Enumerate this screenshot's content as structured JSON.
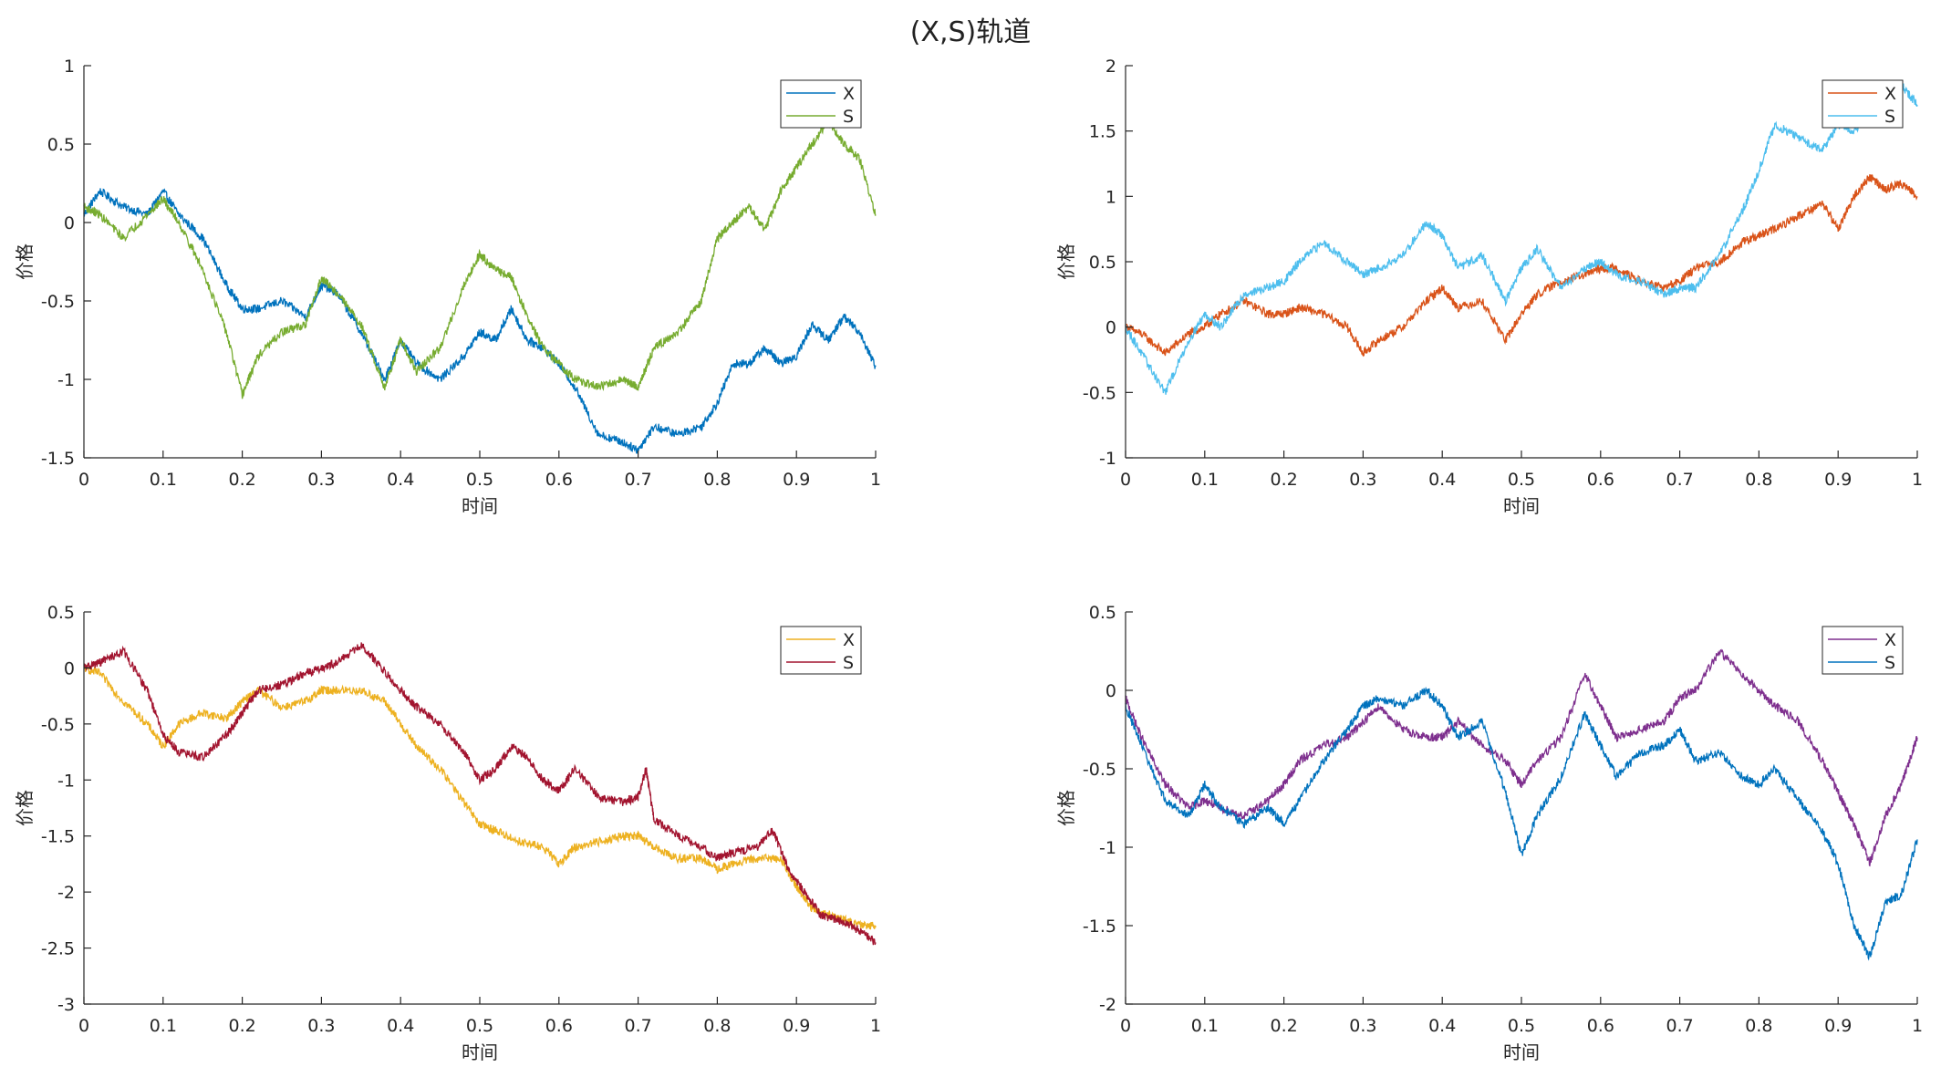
{
  "figure": {
    "title": "(X,S)轨道"
  },
  "chart_data": [
    {
      "type": "line",
      "xlabel": "时间",
      "ylabel": "价格",
      "xlim": [
        0,
        1
      ],
      "ylim": [
        -1.5,
        1
      ],
      "xticks": [
        0,
        0.1,
        0.2,
        0.3,
        0.4,
        0.5,
        0.6,
        0.7,
        0.8,
        0.9,
        1
      ],
      "yticks": [
        -1.5,
        -1,
        -0.5,
        0,
        0.5,
        1
      ],
      "legend_position": "top-right",
      "series": [
        {
          "name": "X",
          "color": "#0072BD",
          "x": [
            0,
            0.02,
            0.05,
            0.08,
            0.1,
            0.12,
            0.15,
            0.18,
            0.2,
            0.22,
            0.25,
            0.28,
            0.3,
            0.32,
            0.35,
            0.38,
            0.4,
            0.42,
            0.45,
            0.48,
            0.5,
            0.52,
            0.54,
            0.56,
            0.58,
            0.6,
            0.62,
            0.65,
            0.68,
            0.7,
            0.72,
            0.75,
            0.78,
            0.8,
            0.82,
            0.84,
            0.86,
            0.88,
            0.9,
            0.92,
            0.94,
            0.96,
            0.98,
            1.0
          ],
          "y": [
            0.05,
            0.2,
            0.1,
            0.05,
            0.2,
            0.05,
            -0.1,
            -0.4,
            -0.55,
            -0.55,
            -0.5,
            -0.6,
            -0.4,
            -0.45,
            -0.7,
            -1.0,
            -0.75,
            -0.9,
            -1.0,
            -0.85,
            -0.7,
            -0.75,
            -0.55,
            -0.75,
            -0.8,
            -0.9,
            -1.05,
            -1.35,
            -1.4,
            -1.45,
            -1.3,
            -1.35,
            -1.3,
            -1.15,
            -0.9,
            -0.9,
            -0.8,
            -0.9,
            -0.85,
            -0.65,
            -0.75,
            -0.6,
            -0.7,
            -0.92
          ]
        },
        {
          "name": "S",
          "color": "#77AC30",
          "x": [
            0,
            0.02,
            0.05,
            0.08,
            0.1,
            0.12,
            0.15,
            0.18,
            0.2,
            0.22,
            0.25,
            0.28,
            0.3,
            0.32,
            0.35,
            0.38,
            0.4,
            0.42,
            0.45,
            0.48,
            0.5,
            0.52,
            0.54,
            0.56,
            0.58,
            0.6,
            0.62,
            0.65,
            0.68,
            0.7,
            0.72,
            0.75,
            0.78,
            0.8,
            0.82,
            0.84,
            0.86,
            0.88,
            0.9,
            0.92,
            0.94,
            0.96,
            0.98,
            1.0
          ],
          "y": [
            0.1,
            0.05,
            -0.1,
            0.05,
            0.15,
            0.0,
            -0.3,
            -0.7,
            -1.1,
            -0.85,
            -0.7,
            -0.65,
            -0.35,
            -0.45,
            -0.65,
            -1.05,
            -0.75,
            -0.95,
            -0.8,
            -0.4,
            -0.2,
            -0.3,
            -0.35,
            -0.6,
            -0.8,
            -0.9,
            -1.0,
            -1.05,
            -1.0,
            -1.05,
            -0.8,
            -0.7,
            -0.5,
            -0.1,
            -0.0,
            0.1,
            -0.05,
            0.2,
            0.35,
            0.5,
            0.65,
            0.5,
            0.4,
            0.05
          ]
        }
      ]
    },
    {
      "type": "line",
      "xlabel": "时间",
      "ylabel": "价格",
      "xlim": [
        0,
        1
      ],
      "ylim": [
        -1,
        2
      ],
      "xticks": [
        0,
        0.1,
        0.2,
        0.3,
        0.4,
        0.5,
        0.6,
        0.7,
        0.8,
        0.9,
        1
      ],
      "yticks": [
        -1,
        -0.5,
        0,
        0.5,
        1,
        1.5,
        2
      ],
      "legend_position": "top-right",
      "series": [
        {
          "name": "X",
          "color": "#D95319",
          "x": [
            0,
            0.02,
            0.05,
            0.08,
            0.1,
            0.12,
            0.15,
            0.18,
            0.2,
            0.22,
            0.25,
            0.28,
            0.3,
            0.32,
            0.35,
            0.38,
            0.4,
            0.42,
            0.45,
            0.48,
            0.5,
            0.52,
            0.55,
            0.58,
            0.6,
            0.62,
            0.65,
            0.68,
            0.7,
            0.72,
            0.75,
            0.78,
            0.8,
            0.82,
            0.85,
            0.88,
            0.9,
            0.92,
            0.94,
            0.96,
            0.98,
            1.0
          ],
          "y": [
            0,
            -0.05,
            -0.2,
            -0.05,
            0,
            0.1,
            0.2,
            0.1,
            0.1,
            0.15,
            0.1,
            0.0,
            -0.2,
            -0.1,
            0.0,
            0.2,
            0.3,
            0.15,
            0.2,
            -0.1,
            0.1,
            0.25,
            0.35,
            0.4,
            0.45,
            0.45,
            0.35,
            0.3,
            0.35,
            0.45,
            0.5,
            0.65,
            0.7,
            0.75,
            0.85,
            0.95,
            0.75,
            1.0,
            1.15,
            1.05,
            1.1,
            1.0
          ]
        },
        {
          "name": "S",
          "color": "#4DBEEE",
          "x": [
            0,
            0.02,
            0.05,
            0.08,
            0.1,
            0.12,
            0.15,
            0.18,
            0.2,
            0.22,
            0.25,
            0.28,
            0.3,
            0.32,
            0.35,
            0.38,
            0.4,
            0.42,
            0.45,
            0.48,
            0.5,
            0.52,
            0.55,
            0.58,
            0.6,
            0.62,
            0.65,
            0.68,
            0.7,
            0.72,
            0.75,
            0.78,
            0.8,
            0.82,
            0.85,
            0.88,
            0.9,
            0.92,
            0.94,
            0.96,
            0.98,
            1.0
          ],
          "y": [
            0,
            -0.2,
            -0.5,
            -0.1,
            0.1,
            0.0,
            0.25,
            0.3,
            0.35,
            0.5,
            0.65,
            0.5,
            0.4,
            0.45,
            0.55,
            0.8,
            0.7,
            0.45,
            0.55,
            0.2,
            0.45,
            0.6,
            0.3,
            0.45,
            0.5,
            0.4,
            0.35,
            0.25,
            0.3,
            0.3,
            0.55,
            0.9,
            1.2,
            1.55,
            1.45,
            1.35,
            1.55,
            1.5,
            1.65,
            1.75,
            1.85,
            1.7
          ]
        }
      ]
    },
    {
      "type": "line",
      "xlabel": "时间",
      "ylabel": "价格",
      "xlim": [
        0,
        1
      ],
      "ylim": [
        -3,
        0.5
      ],
      "xticks": [
        0,
        0.1,
        0.2,
        0.3,
        0.4,
        0.5,
        0.6,
        0.7,
        0.8,
        0.9,
        1
      ],
      "yticks": [
        -3,
        -2.5,
        -2,
        -1.5,
        -1,
        -0.5,
        0,
        0.5
      ],
      "legend_position": "top-right",
      "series": [
        {
          "name": "X",
          "color": "#EDB120",
          "x": [
            0,
            0.02,
            0.05,
            0.08,
            0.1,
            0.12,
            0.15,
            0.18,
            0.2,
            0.22,
            0.25,
            0.28,
            0.3,
            0.32,
            0.35,
            0.38,
            0.4,
            0.42,
            0.45,
            0.48,
            0.5,
            0.52,
            0.55,
            0.58,
            0.6,
            0.62,
            0.65,
            0.68,
            0.7,
            0.72,
            0.75,
            0.78,
            0.8,
            0.82,
            0.85,
            0.88,
            0.9,
            0.92,
            0.94,
            0.96,
            0.98,
            1.0
          ],
          "y": [
            0,
            -0.05,
            -0.3,
            -0.5,
            -0.7,
            -0.5,
            -0.4,
            -0.45,
            -0.3,
            -0.2,
            -0.35,
            -0.3,
            -0.2,
            -0.2,
            -0.2,
            -0.3,
            -0.5,
            -0.7,
            -0.9,
            -1.2,
            -1.4,
            -1.45,
            -1.55,
            -1.6,
            -1.75,
            -1.6,
            -1.55,
            -1.5,
            -1.5,
            -1.6,
            -1.7,
            -1.7,
            -1.8,
            -1.75,
            -1.7,
            -1.7,
            -1.95,
            -2.15,
            -2.2,
            -2.25,
            -2.3,
            -2.3
          ]
        },
        {
          "name": "S",
          "color": "#A2142F",
          "x": [
            0,
            0.02,
            0.05,
            0.08,
            0.1,
            0.12,
            0.15,
            0.18,
            0.2,
            0.22,
            0.25,
            0.28,
            0.3,
            0.32,
            0.35,
            0.37,
            0.4,
            0.42,
            0.45,
            0.48,
            0.5,
            0.52,
            0.54,
            0.56,
            0.58,
            0.6,
            0.62,
            0.65,
            0.68,
            0.7,
            0.71,
            0.72,
            0.75,
            0.78,
            0.8,
            0.82,
            0.85,
            0.87,
            0.89,
            0.91,
            0.93,
            0.95,
            0.97,
            1.0
          ],
          "y": [
            0,
            0.05,
            0.15,
            -0.2,
            -0.6,
            -0.75,
            -0.8,
            -0.6,
            -0.4,
            -0.2,
            -0.15,
            -0.05,
            0.0,
            0.05,
            0.2,
            0.05,
            -0.2,
            -0.35,
            -0.5,
            -0.75,
            -1.0,
            -0.9,
            -0.7,
            -0.8,
            -1.0,
            -1.1,
            -0.9,
            -1.15,
            -1.2,
            -1.15,
            -0.9,
            -1.35,
            -1.5,
            -1.6,
            -1.7,
            -1.65,
            -1.6,
            -1.45,
            -1.8,
            -2.0,
            -2.2,
            -2.25,
            -2.3,
            -2.45
          ]
        }
      ]
    },
    {
      "type": "line",
      "xlabel": "时间",
      "ylabel": "价格",
      "xlim": [
        0,
        1
      ],
      "ylim": [
        -2,
        0.5
      ],
      "xticks": [
        0,
        0.1,
        0.2,
        0.3,
        0.4,
        0.5,
        0.6,
        0.7,
        0.8,
        0.9,
        1
      ],
      "yticks": [
        -2,
        -1.5,
        -1,
        -0.5,
        0,
        0.5
      ],
      "legend_position": "top-right",
      "series": [
        {
          "name": "X",
          "color": "#7E2F8E",
          "x": [
            0,
            0.02,
            0.05,
            0.08,
            0.1,
            0.12,
            0.15,
            0.18,
            0.2,
            0.22,
            0.25,
            0.28,
            0.3,
            0.32,
            0.35,
            0.38,
            0.4,
            0.42,
            0.45,
            0.48,
            0.5,
            0.52,
            0.55,
            0.58,
            0.6,
            0.62,
            0.65,
            0.68,
            0.7,
            0.72,
            0.75,
            0.78,
            0.8,
            0.82,
            0.85,
            0.88,
            0.9,
            0.92,
            0.94,
            0.96,
            0.98,
            1.0
          ],
          "y": [
            -0.05,
            -0.3,
            -0.6,
            -0.75,
            -0.7,
            -0.75,
            -0.8,
            -0.7,
            -0.6,
            -0.45,
            -0.35,
            -0.3,
            -0.2,
            -0.1,
            -0.25,
            -0.3,
            -0.3,
            -0.2,
            -0.35,
            -0.45,
            -0.6,
            -0.45,
            -0.3,
            0.1,
            -0.1,
            -0.3,
            -0.25,
            -0.2,
            -0.05,
            0.0,
            0.25,
            0.1,
            0.0,
            -0.1,
            -0.2,
            -0.45,
            -0.65,
            -0.85,
            -1.1,
            -0.8,
            -0.6,
            -0.3
          ]
        },
        {
          "name": "S",
          "color": "#0072BD",
          "x": [
            0,
            0.02,
            0.05,
            0.08,
            0.1,
            0.12,
            0.15,
            0.18,
            0.2,
            0.22,
            0.25,
            0.28,
            0.3,
            0.32,
            0.35,
            0.38,
            0.4,
            0.42,
            0.45,
            0.48,
            0.5,
            0.52,
            0.55,
            0.58,
            0.6,
            0.62,
            0.65,
            0.68,
            0.7,
            0.72,
            0.75,
            0.78,
            0.8,
            0.82,
            0.85,
            0.88,
            0.9,
            0.92,
            0.94,
            0.96,
            0.98,
            1.0
          ],
          "y": [
            -0.1,
            -0.35,
            -0.7,
            -0.8,
            -0.6,
            -0.75,
            -0.85,
            -0.75,
            -0.85,
            -0.7,
            -0.45,
            -0.25,
            -0.1,
            -0.05,
            -0.1,
            0.0,
            -0.1,
            -0.3,
            -0.2,
            -0.65,
            -1.05,
            -0.8,
            -0.55,
            -0.15,
            -0.35,
            -0.55,
            -0.4,
            -0.35,
            -0.25,
            -0.45,
            -0.4,
            -0.55,
            -0.6,
            -0.5,
            -0.7,
            -0.9,
            -1.1,
            -1.5,
            -1.7,
            -1.35,
            -1.3,
            -0.95
          ]
        }
      ]
    }
  ]
}
